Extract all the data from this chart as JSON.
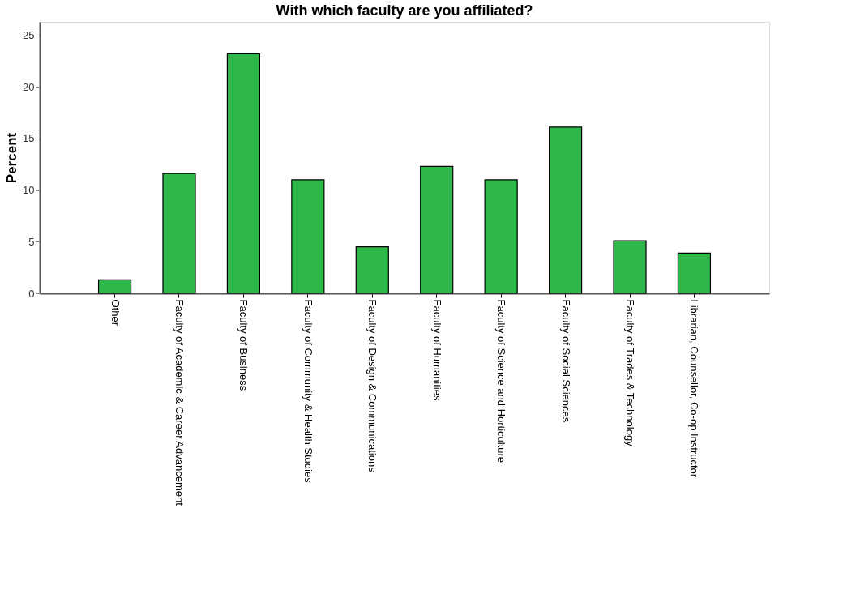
{
  "chart_data": {
    "type": "bar",
    "title": "With which faculty are you affiliated?",
    "ylabel": "Percent",
    "categories": [
      "Other",
      "Faculty of Academic & Career Advancement",
      "Faculty of Business",
      "Faculty of Community & Health Studies",
      "Faculty of Design & Communications",
      "Faculty of Humanities",
      "Faculty of Science and Horticulture",
      "Faculty of Social Sciences",
      "Faculty of Trades & Technology",
      "Librarian, Counsellor, Co-op Instructor"
    ],
    "values": [
      1.3,
      11.6,
      23.2,
      11.0,
      4.5,
      12.3,
      11.0,
      16.1,
      5.1,
      3.9
    ],
    "color": "#2eb84a",
    "ylim": [
      0,
      26.3
    ],
    "yticks": [
      0,
      5,
      10,
      15,
      20,
      25
    ],
    "grid": false
  }
}
